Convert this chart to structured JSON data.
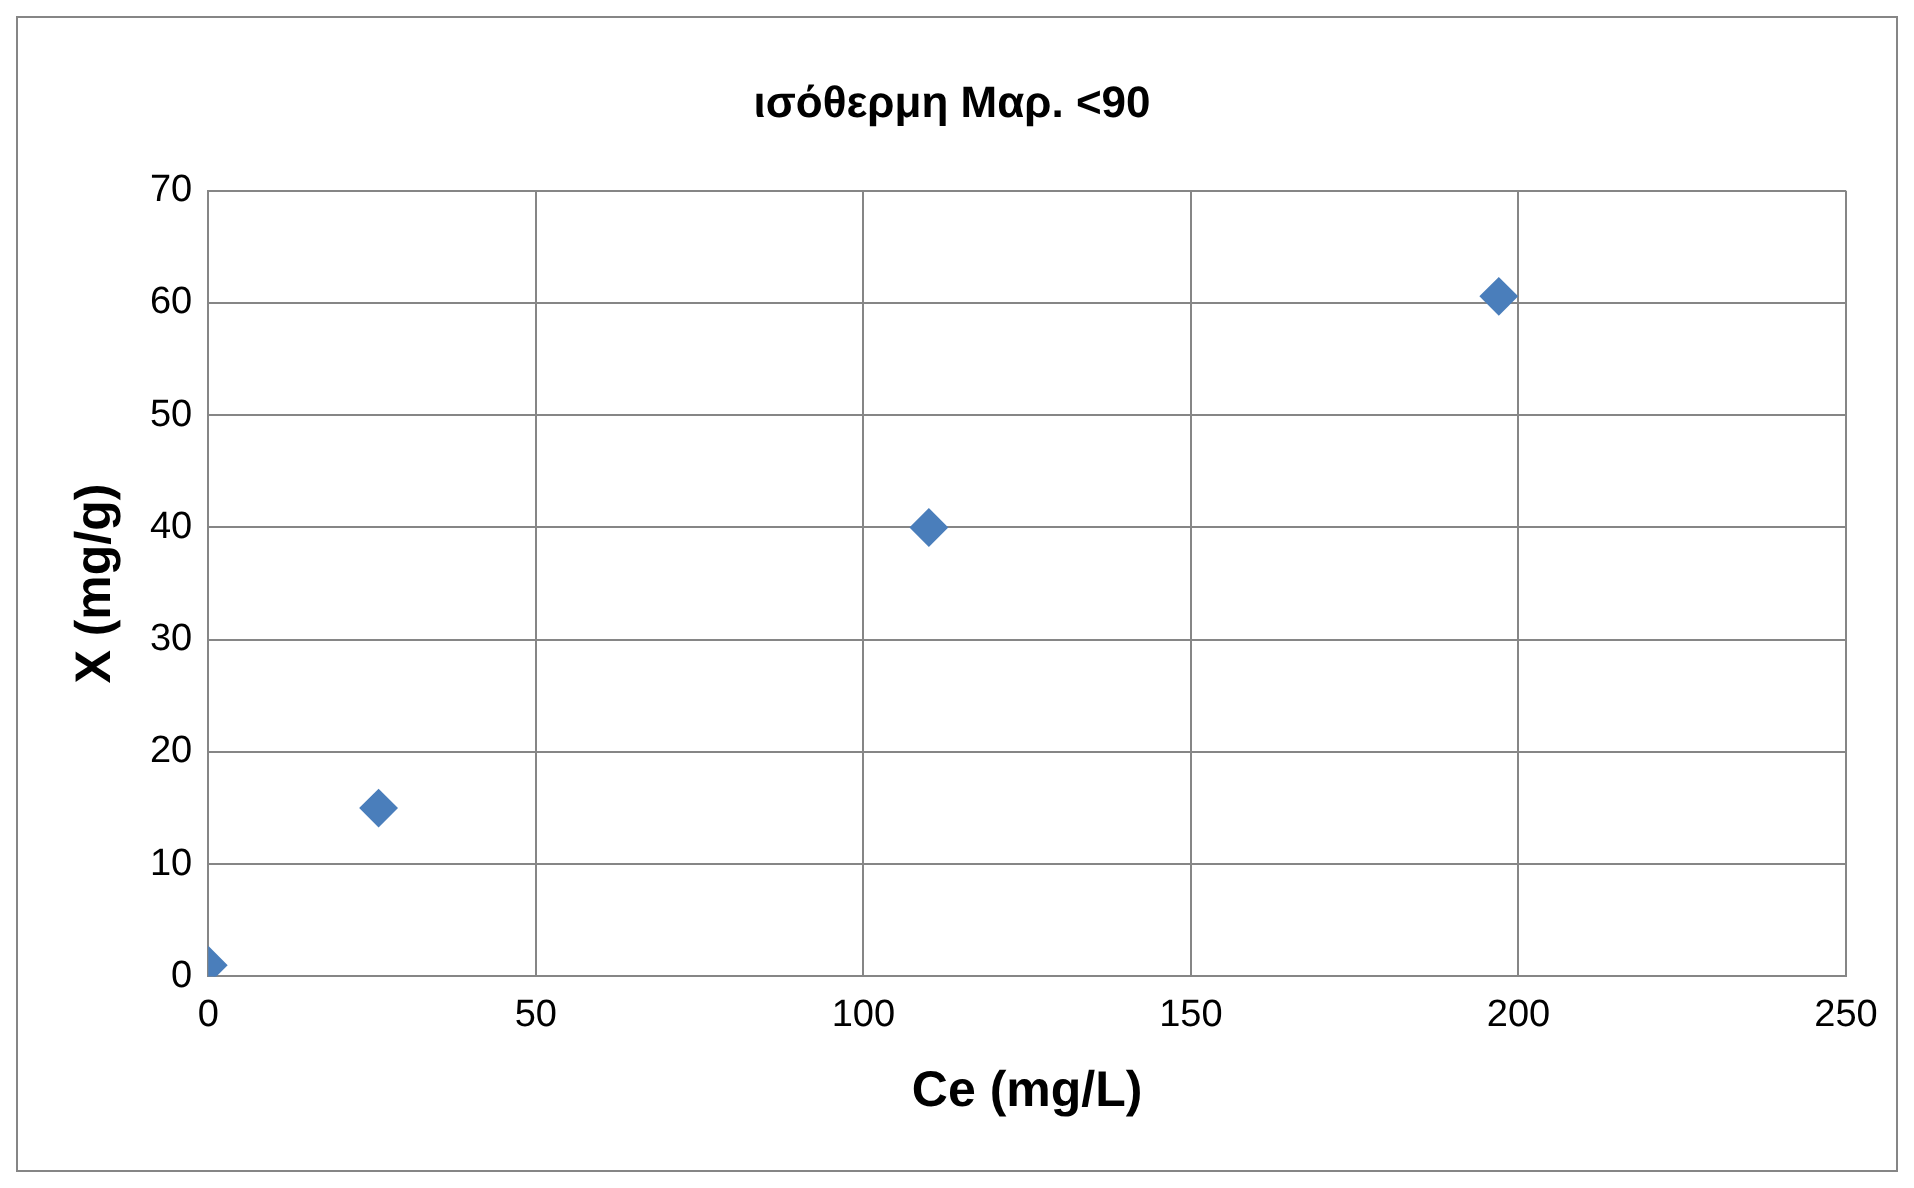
{
  "chart_data": {
    "type": "scatter",
    "title": "ισόθερμη Μαρ. <90",
    "xlabel": "Ce (mg/L)",
    "ylabel": "X (mg/g)",
    "x": [
      0,
      26,
      110,
      197
    ],
    "series": [
      {
        "color": "#4a7ebb",
        "values": [
          1,
          15,
          40,
          60.6
        ]
      }
    ],
    "xlim": [
      0,
      250
    ],
    "xticks": [
      0,
      50,
      100,
      150,
      200,
      250
    ],
    "ylim": [
      0,
      70
    ],
    "yticks": [
      0,
      10,
      20,
      30,
      40,
      50,
      60,
      70
    ],
    "grid": true,
    "legend": false,
    "marker": "diamond"
  }
}
